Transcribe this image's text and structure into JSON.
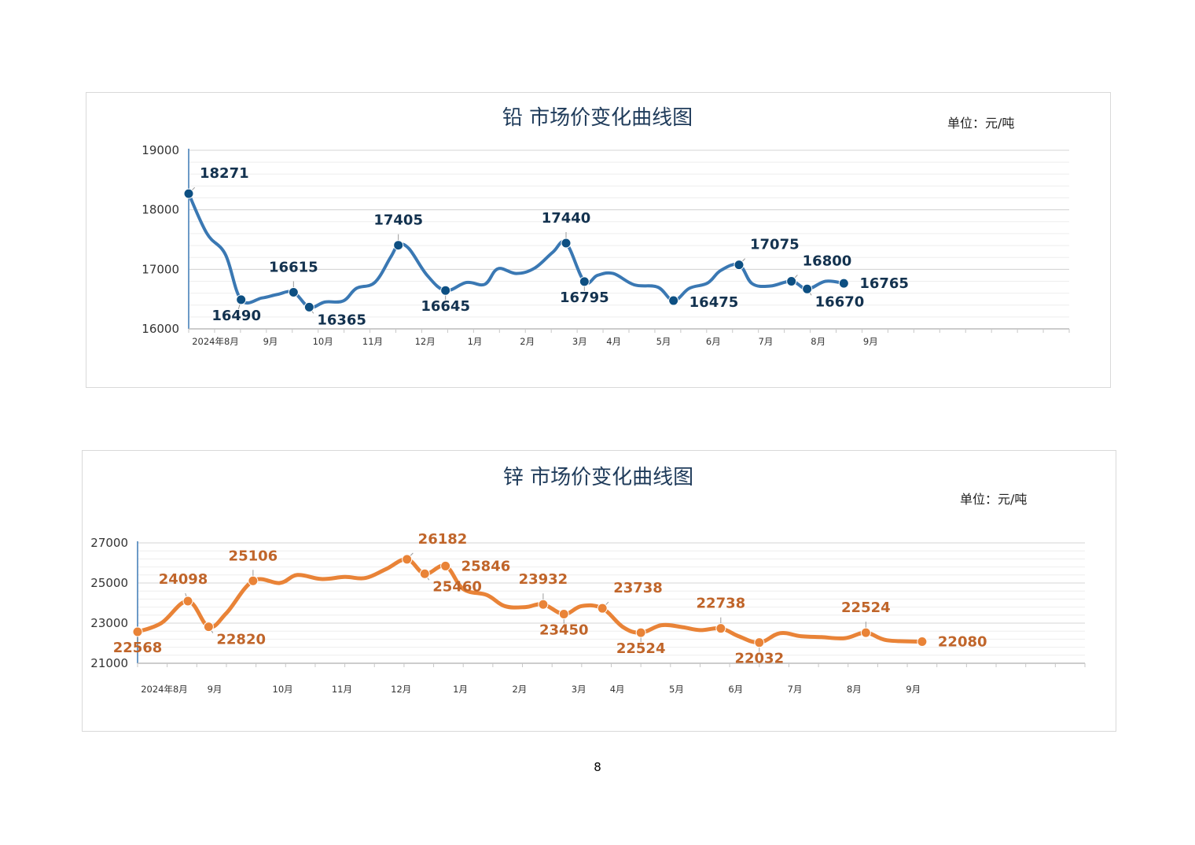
{
  "page": {
    "number": "8"
  },
  "chart_data": [
    {
      "type": "line",
      "title": "铅 市场价变化曲线图",
      "unit": "单位：元/吨",
      "color": "#3a78b3",
      "label_color": "#13324f",
      "marker_color": "#0d4f82",
      "ylim": [
        16000,
        19000
      ],
      "yticks": [
        "16000",
        "17000",
        "18000",
        "19000"
      ],
      "xticks": [
        {
          "label": "2024年8月",
          "x": 0.0
        },
        {
          "label": "9月",
          "x": 1.05
        },
        {
          "label": "10月",
          "x": 2.05
        },
        {
          "label": "11月",
          "x": 3.0
        },
        {
          "label": "12月",
          "x": 4.0
        },
        {
          "label": "1月",
          "x": 4.95
        },
        {
          "label": "2月",
          "x": 5.95
        },
        {
          "label": "3月",
          "x": 6.95
        },
        {
          "label": "4月",
          "x": 7.6
        },
        {
          "label": "5月",
          "x": 8.55
        },
        {
          "label": "6月",
          "x": 9.5
        },
        {
          "label": "7月",
          "x": 10.5
        },
        {
          "label": "8月",
          "x": 11.5
        },
        {
          "label": "9月",
          "x": 12.5
        }
      ],
      "x_max": 16.8,
      "curve": [
        [
          0.0,
          18271
        ],
        [
          0.35,
          17600
        ],
        [
          0.7,
          17250
        ],
        [
          1.0,
          16490
        ],
        [
          1.4,
          16520
        ],
        [
          1.7,
          16580
        ],
        [
          2.0,
          16615
        ],
        [
          2.3,
          16365
        ],
        [
          2.6,
          16450
        ],
        [
          2.95,
          16470
        ],
        [
          3.2,
          16680
        ],
        [
          3.55,
          16780
        ],
        [
          3.85,
          17200
        ],
        [
          4.0,
          17405
        ],
        [
          4.2,
          17350
        ],
        [
          4.55,
          16900
        ],
        [
          4.9,
          16645
        ],
        [
          5.3,
          16780
        ],
        [
          5.65,
          16750
        ],
        [
          5.9,
          17010
        ],
        [
          6.25,
          16930
        ],
        [
          6.6,
          17020
        ],
        [
          6.95,
          17290
        ],
        [
          7.2,
          17440
        ],
        [
          7.55,
          16795
        ],
        [
          7.8,
          16900
        ],
        [
          8.1,
          16930
        ],
        [
          8.5,
          16740
        ],
        [
          8.95,
          16700
        ],
        [
          9.25,
          16475
        ],
        [
          9.55,
          16680
        ],
        [
          9.9,
          16770
        ],
        [
          10.15,
          16980
        ],
        [
          10.5,
          17075
        ],
        [
          10.75,
          16760
        ],
        [
          11.1,
          16720
        ],
        [
          11.5,
          16800
        ],
        [
          11.8,
          16670
        ],
        [
          12.15,
          16800
        ],
        [
          12.5,
          16765
        ]
      ],
      "points": [
        {
          "x": 0.0,
          "value": 18271,
          "label": "18271",
          "pos": "above-right"
        },
        {
          "x": 1.0,
          "value": 16490,
          "label": "16490",
          "pos": "below-left"
        },
        {
          "x": 2.0,
          "value": 16615,
          "label": "16615",
          "pos": "above"
        },
        {
          "x": 2.3,
          "value": 16365,
          "label": "16365",
          "pos": "below-right"
        },
        {
          "x": 4.0,
          "value": 17405,
          "label": "17405",
          "pos": "above"
        },
        {
          "x": 4.9,
          "value": 16645,
          "label": "16645",
          "pos": "below"
        },
        {
          "x": 7.2,
          "value": 17440,
          "label": "17440",
          "pos": "above"
        },
        {
          "x": 7.55,
          "value": 16795,
          "label": "16795",
          "pos": "below"
        },
        {
          "x": 9.25,
          "value": 16475,
          "label": "16475",
          "pos": "right-low"
        },
        {
          "x": 10.5,
          "value": 17075,
          "label": "17075",
          "pos": "above-right"
        },
        {
          "x": 11.5,
          "value": 16800,
          "label": "16800",
          "pos": "above-right"
        },
        {
          "x": 11.8,
          "value": 16670,
          "label": "16670",
          "pos": "below-right"
        },
        {
          "x": 12.5,
          "value": 16765,
          "label": "16765",
          "pos": "right"
        }
      ],
      "grid": true,
      "legend": "none"
    },
    {
      "type": "line",
      "title": "锌 市场价变化曲线图",
      "unit": "单位：元/吨",
      "color": "#e98337",
      "label_color": "#c0652a",
      "marker_color": "#e98337",
      "ylim": [
        21000,
        27000
      ],
      "yticks": [
        "21000",
        "23000",
        "25000",
        "27000"
      ],
      "xticks": [
        {
          "label": "2024年8月",
          "x": 0.0
        },
        {
          "label": "9月",
          "x": 0.85
        },
        {
          "label": "10月",
          "x": 2.0
        },
        {
          "label": "11月",
          "x": 3.0
        },
        {
          "label": "12月",
          "x": 4.0
        },
        {
          "label": "1月",
          "x": 5.0
        },
        {
          "label": "2月",
          "x": 6.0
        },
        {
          "label": "3月",
          "x": 7.0
        },
        {
          "label": "4月",
          "x": 7.65
        },
        {
          "label": "5月",
          "x": 8.65
        },
        {
          "label": "6月",
          "x": 9.65
        },
        {
          "label": "7月",
          "x": 10.65
        },
        {
          "label": "8月",
          "x": 11.65
        },
        {
          "label": "9月",
          "x": 12.65
        }
      ],
      "x_max": 16.0,
      "curve": [
        [
          0.0,
          22568
        ],
        [
          0.4,
          23000
        ],
        [
          0.85,
          24098
        ],
        [
          1.2,
          22820
        ],
        [
          1.5,
          23500
        ],
        [
          1.95,
          25106
        ],
        [
          2.4,
          25000
        ],
        [
          2.7,
          25400
        ],
        [
          3.1,
          25200
        ],
        [
          3.5,
          25300
        ],
        [
          3.85,
          25250
        ],
        [
          4.2,
          25700
        ],
        [
          4.55,
          26182
        ],
        [
          4.85,
          25460
        ],
        [
          5.2,
          25846
        ],
        [
          5.5,
          24700
        ],
        [
          5.9,
          24400
        ],
        [
          6.2,
          23850
        ],
        [
          6.55,
          23800
        ],
        [
          6.85,
          23932
        ],
        [
          7.2,
          23450
        ],
        [
          7.5,
          23850
        ],
        [
          7.85,
          23738
        ],
        [
          8.2,
          22800
        ],
        [
          8.5,
          22524
        ],
        [
          8.85,
          22900
        ],
        [
          9.2,
          22800
        ],
        [
          9.5,
          22650
        ],
        [
          9.85,
          22738
        ],
        [
          10.15,
          22350
        ],
        [
          10.5,
          22032
        ],
        [
          10.85,
          22500
        ],
        [
          11.2,
          22350
        ],
        [
          11.55,
          22300
        ],
        [
          11.95,
          22250
        ],
        [
          12.3,
          22524
        ],
        [
          12.65,
          22150
        ],
        [
          13.25,
          22080
        ]
      ],
      "points": [
        {
          "x": 0.0,
          "value": 22568,
          "label": "22568",
          "pos": "below"
        },
        {
          "x": 0.85,
          "value": 24098,
          "label": "24098",
          "pos": "above-left"
        },
        {
          "x": 1.2,
          "value": 22820,
          "label": "22820",
          "pos": "below-right"
        },
        {
          "x": 1.95,
          "value": 25106,
          "label": "25106",
          "pos": "above"
        },
        {
          "x": 4.55,
          "value": 26182,
          "label": "26182",
          "pos": "above-right"
        },
        {
          "x": 4.85,
          "value": 25460,
          "label": "25460",
          "pos": "below-right"
        },
        {
          "x": 5.2,
          "value": 25846,
          "label": "25846",
          "pos": "right"
        },
        {
          "x": 6.85,
          "value": 23932,
          "label": "23932",
          "pos": "above"
        },
        {
          "x": 7.2,
          "value": 23450,
          "label": "23450",
          "pos": "below"
        },
        {
          "x": 7.85,
          "value": 23738,
          "label": "23738",
          "pos": "above-right"
        },
        {
          "x": 8.5,
          "value": 22524,
          "label": "22524",
          "pos": "below"
        },
        {
          "x": 9.85,
          "value": 22738,
          "label": "22738",
          "pos": "above"
        },
        {
          "x": 10.5,
          "value": 22032,
          "label": "22032",
          "pos": "below"
        },
        {
          "x": 12.3,
          "value": 22524,
          "label": "22524",
          "pos": "above"
        },
        {
          "x": 13.25,
          "value": 22080,
          "label": "22080",
          "pos": "right"
        }
      ],
      "grid": true,
      "legend": "none"
    }
  ]
}
